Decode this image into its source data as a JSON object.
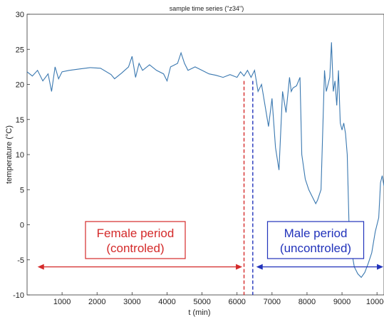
{
  "chart_data": {
    "type": "line",
    "title": "sample time series (\"z34\")",
    "xlabel": "t (min)",
    "ylabel": "temperature (°C)",
    "xlim": [
      0,
      10200
    ],
    "ylim": [
      -10,
      30
    ],
    "x_ticks": [
      1000,
      2000,
      3000,
      4000,
      5000,
      6000,
      7000,
      8000,
      9000,
      10000
    ],
    "x_tick_labels": [
      "1000",
      "2000",
      "3000",
      "4000",
      "5000",
      "6000",
      "7000",
      "8000",
      "9000",
      "10000"
    ],
    "y_ticks": [
      -10,
      -5,
      0,
      5,
      10,
      15,
      20,
      25,
      30
    ],
    "y_tick_labels": [
      "-10",
      "-5",
      "0",
      "5",
      "10",
      "15",
      "20",
      "25",
      "30"
    ],
    "grid": false,
    "series_color": "#3a78b0",
    "x": [
      0,
      150,
      300,
      450,
      600,
      700,
      800,
      900,
      1000,
      1200,
      1500,
      1800,
      2100,
      2400,
      2500,
      2700,
      2900,
      3000,
      3100,
      3200,
      3300,
      3500,
      3700,
      3900,
      4000,
      4100,
      4300,
      4400,
      4500,
      4600,
      4800,
      5000,
      5200,
      5400,
      5600,
      5800,
      6000,
      6100,
      6200,
      6300,
      6400,
      6500,
      6600,
      6700,
      6800,
      6900,
      7000,
      7100,
      7200,
      7300,
      7400,
      7500,
      7550,
      7600,
      7700,
      7800,
      7850,
      7950,
      8050,
      8150,
      8250,
      8300,
      8400,
      8500,
      8550,
      8650,
      8700,
      8750,
      8800,
      8850,
      8900,
      8950,
      9000,
      9050,
      9100,
      9150,
      9200,
      9250,
      9350,
      9450,
      9550,
      9650,
      9750,
      9850,
      9950,
      10050,
      10100,
      10150,
      10200
    ],
    "values": [
      21.8,
      21.2,
      22.0,
      20.5,
      21.5,
      19.0,
      22.5,
      20.8,
      21.8,
      22.0,
      22.2,
      22.4,
      22.3,
      21.4,
      20.8,
      21.6,
      22.5,
      24.0,
      21.0,
      23.0,
      22.0,
      22.8,
      22.0,
      21.5,
      20.5,
      22.5,
      23.0,
      24.5,
      23.0,
      22.0,
      22.5,
      22.0,
      21.5,
      21.3,
      21.0,
      21.4,
      21.0,
      21.8,
      21.2,
      22.0,
      21.0,
      22.0,
      19.0,
      20.0,
      17.0,
      14.0,
      18.0,
      11.0,
      7.8,
      19.0,
      16.0,
      21.0,
      19.0,
      19.5,
      19.8,
      21.0,
      10.0,
      6.5,
      5.0,
      4.0,
      3.0,
      3.5,
      5.0,
      22.0,
      19.0,
      21.0,
      26.0,
      19.0,
      20.5,
      17.0,
      22.0,
      14.5,
      13.5,
      14.5,
      13.0,
      10.0,
      0.0,
      -3.0,
      -6.0,
      -7.0,
      -7.5,
      -6.8,
      -5.5,
      -4.0,
      -1.0,
      1.0,
      6.0,
      7.0,
      5.5
    ],
    "annotations": [
      {
        "text_lines": [
          "Female period",
          "(controled)"
        ],
        "color": "#d42a2a",
        "arrow_from": 300,
        "arrow_to": 6150,
        "divider_x": 6200
      },
      {
        "text_lines": [
          "Male period",
          "(uncontroled)"
        ],
        "color": "#2233bb",
        "arrow_from": 6550,
        "arrow_to": 10180,
        "divider_x": 6450
      }
    ]
  }
}
